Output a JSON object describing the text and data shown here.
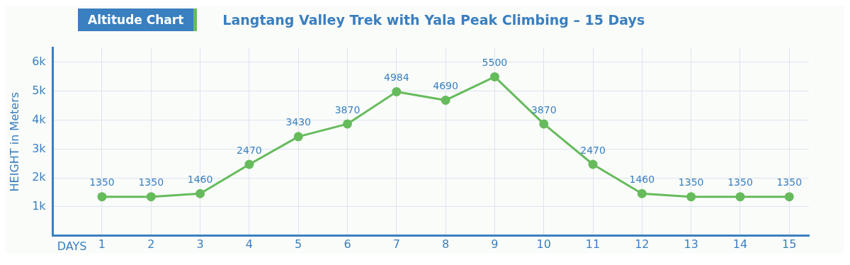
{
  "chart_data": {
    "type": "line",
    "title": "Langtang Valley Trek with Yala Peak Climbing – 15 Days",
    "subtitle": "Altitude Chart",
    "xlabel": "DAYS",
    "ylabel": "HEIGHT in Meters",
    "x": [
      1,
      2,
      3,
      4,
      5,
      6,
      7,
      8,
      9,
      10,
      11,
      12,
      13,
      14,
      15
    ],
    "series": [
      {
        "color": "#66bb5c",
        "values": [
          1350,
          1350,
          1460,
          2470,
          3430,
          3870,
          4984,
          4690,
          5500,
          3870,
          2470,
          1460,
          1350,
          1350,
          1350
        ]
      }
    ],
    "xlim": [
      0,
      15.4
    ],
    "xticks": [
      1,
      2,
      3,
      4,
      5,
      6,
      7,
      8,
      9,
      10,
      11,
      12,
      13,
      14,
      15
    ],
    "ylim": [
      0,
      6500
    ],
    "yticks": [
      {
        "value": 1000,
        "label": "1k"
      },
      {
        "value": 2000,
        "label": "2k"
      },
      {
        "value": 3000,
        "label": "3k"
      },
      {
        "value": 4000,
        "label": "4k"
      },
      {
        "value": 5000,
        "label": "5k"
      },
      {
        "value": 6000,
        "label": "6k"
      }
    ],
    "grid": true,
    "marker": "circle",
    "line_style": "solid",
    "data_labels": true
  }
}
